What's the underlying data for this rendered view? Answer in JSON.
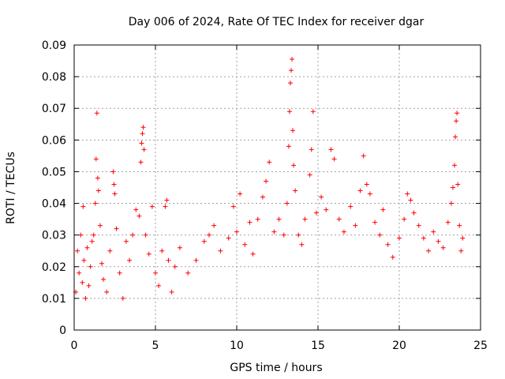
{
  "chart_data": {
    "type": "scatter",
    "title": "Day 006 of 2024, Rate Of TEC Index for receiver dgar",
    "xlabel": "GPS time / hours",
    "ylabel": "ROTI / TECUs",
    "xlim": [
      0,
      25
    ],
    "ylim": [
      0,
      0.09
    ],
    "xticks": [
      0,
      5,
      10,
      15,
      20,
      25
    ],
    "xtick_labels": [
      "0",
      "5",
      "10",
      "15",
      "20",
      "25"
    ],
    "yticks": [
      0,
      0.01,
      0.02,
      0.03,
      0.04,
      0.05,
      0.06,
      0.07,
      0.08,
      0.09
    ],
    "ytick_labels": [
      "0",
      "0.01",
      "0.02",
      "0.03",
      "0.04",
      "0.05",
      "0.06",
      "0.07",
      "0.08",
      "0.09"
    ],
    "grid": true,
    "marker": "+",
    "color": "#ff0000",
    "series": [
      {
        "name": "ROTI",
        "points": [
          [
            0.1,
            0.012
          ],
          [
            0.2,
            0.025
          ],
          [
            0.3,
            0.018
          ],
          [
            0.4,
            0.03
          ],
          [
            0.5,
            0.015
          ],
          [
            0.55,
            0.039
          ],
          [
            0.6,
            0.022
          ],
          [
            0.7,
            0.01
          ],
          [
            0.8,
            0.026
          ],
          [
            0.9,
            0.014
          ],
          [
            1.0,
            0.02
          ],
          [
            1.1,
            0.028
          ],
          [
            1.2,
            0.03
          ],
          [
            1.3,
            0.04
          ],
          [
            1.35,
            0.054
          ],
          [
            1.4,
            0.0685
          ],
          [
            1.45,
            0.048
          ],
          [
            1.5,
            0.044
          ],
          [
            1.6,
            0.033
          ],
          [
            1.7,
            0.021
          ],
          [
            1.8,
            0.016
          ],
          [
            2.0,
            0.012
          ],
          [
            2.2,
            0.025
          ],
          [
            2.4,
            0.05
          ],
          [
            2.45,
            0.046
          ],
          [
            2.5,
            0.043
          ],
          [
            2.6,
            0.032
          ],
          [
            2.8,
            0.018
          ],
          [
            3.0,
            0.01
          ],
          [
            3.2,
            0.028
          ],
          [
            3.4,
            0.022
          ],
          [
            3.6,
            0.03
          ],
          [
            3.8,
            0.038
          ],
          [
            4.0,
            0.036
          ],
          [
            4.1,
            0.053
          ],
          [
            4.15,
            0.059
          ],
          [
            4.2,
            0.062
          ],
          [
            4.25,
            0.064
          ],
          [
            4.3,
            0.057
          ],
          [
            4.4,
            0.03
          ],
          [
            4.6,
            0.024
          ],
          [
            4.8,
            0.039
          ],
          [
            5.0,
            0.018
          ],
          [
            5.2,
            0.014
          ],
          [
            5.4,
            0.025
          ],
          [
            5.6,
            0.039
          ],
          [
            5.7,
            0.041
          ],
          [
            5.8,
            0.022
          ],
          [
            6.0,
            0.012
          ],
          [
            6.2,
            0.02
          ],
          [
            6.5,
            0.026
          ],
          [
            7.0,
            0.018
          ],
          [
            7.5,
            0.022
          ],
          [
            8.0,
            0.028
          ],
          [
            8.3,
            0.03
          ],
          [
            8.6,
            0.033
          ],
          [
            9.0,
            0.025
          ],
          [
            9.5,
            0.029
          ],
          [
            9.8,
            0.039
          ],
          [
            10.0,
            0.031
          ],
          [
            10.2,
            0.043
          ],
          [
            10.5,
            0.027
          ],
          [
            10.8,
            0.034
          ],
          [
            11.0,
            0.024
          ],
          [
            11.3,
            0.035
          ],
          [
            11.6,
            0.042
          ],
          [
            11.8,
            0.047
          ],
          [
            12.0,
            0.053
          ],
          [
            12.3,
            0.031
          ],
          [
            12.6,
            0.035
          ],
          [
            12.9,
            0.03
          ],
          [
            13.1,
            0.04
          ],
          [
            13.2,
            0.058
          ],
          [
            13.25,
            0.069
          ],
          [
            13.3,
            0.078
          ],
          [
            13.35,
            0.082
          ],
          [
            13.4,
            0.0855
          ],
          [
            13.45,
            0.063
          ],
          [
            13.5,
            0.052
          ],
          [
            13.6,
            0.044
          ],
          [
            13.8,
            0.03
          ],
          [
            14.0,
            0.027
          ],
          [
            14.2,
            0.035
          ],
          [
            14.5,
            0.049
          ],
          [
            14.6,
            0.057
          ],
          [
            14.7,
            0.069
          ],
          [
            14.9,
            0.037
          ],
          [
            15.2,
            0.042
          ],
          [
            15.5,
            0.038
          ],
          [
            15.8,
            0.057
          ],
          [
            16.0,
            0.054
          ],
          [
            16.3,
            0.035
          ],
          [
            16.6,
            0.031
          ],
          [
            17.0,
            0.039
          ],
          [
            17.3,
            0.033
          ],
          [
            17.6,
            0.044
          ],
          [
            17.8,
            0.055
          ],
          [
            18.0,
            0.046
          ],
          [
            18.2,
            0.043
          ],
          [
            18.5,
            0.034
          ],
          [
            18.8,
            0.03
          ],
          [
            19.0,
            0.038
          ],
          [
            19.3,
            0.027
          ],
          [
            19.6,
            0.023
          ],
          [
            20.0,
            0.029
          ],
          [
            20.3,
            0.035
          ],
          [
            20.5,
            0.043
          ],
          [
            20.7,
            0.041
          ],
          [
            20.9,
            0.037
          ],
          [
            21.2,
            0.033
          ],
          [
            21.5,
            0.029
          ],
          [
            21.8,
            0.025
          ],
          [
            22.1,
            0.031
          ],
          [
            22.4,
            0.028
          ],
          [
            22.7,
            0.026
          ],
          [
            23.0,
            0.034
          ],
          [
            23.2,
            0.04
          ],
          [
            23.3,
            0.045
          ],
          [
            23.4,
            0.052
          ],
          [
            23.45,
            0.061
          ],
          [
            23.5,
            0.066
          ],
          [
            23.55,
            0.0685
          ],
          [
            23.6,
            0.046
          ],
          [
            23.7,
            0.033
          ],
          [
            23.8,
            0.025
          ],
          [
            23.9,
            0.029
          ]
        ]
      }
    ]
  }
}
